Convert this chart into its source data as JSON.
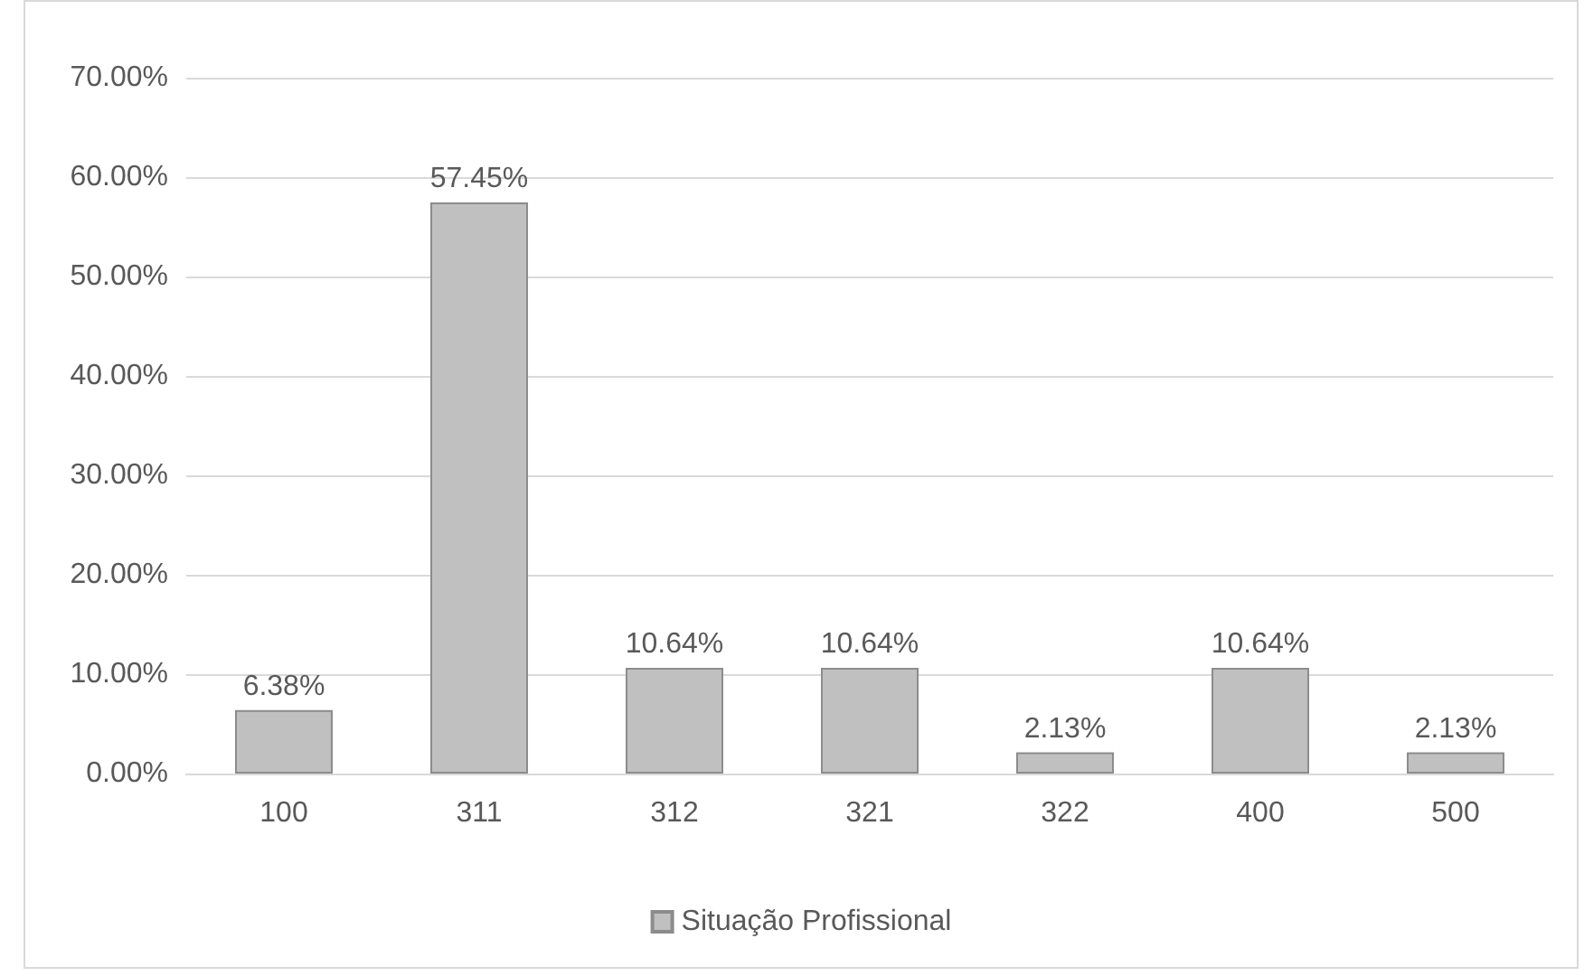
{
  "chart_data": {
    "type": "bar",
    "categories": [
      "100",
      "311",
      "312",
      "321",
      "322",
      "400",
      "500"
    ],
    "series": [
      {
        "name": "Situação Profissional",
        "color": "#c0c0c0",
        "values": [
          6.38,
          57.45,
          10.64,
          10.64,
          2.13,
          10.64,
          2.13
        ],
        "value_labels": [
          "6.38%",
          "57.45%",
          "10.64%",
          "10.64%",
          "2.13%",
          "10.64%",
          "2.13%"
        ]
      }
    ],
    "ylim": [
      0,
      70
    ],
    "yticks": [
      {
        "value": 0,
        "label": "0.00%"
      },
      {
        "value": 10,
        "label": "10.00%"
      },
      {
        "value": 20,
        "label": "20.00%"
      },
      {
        "value": 30,
        "label": "30.00%"
      },
      {
        "value": 40,
        "label": "40.00%"
      },
      {
        "value": 50,
        "label": "50.00%"
      },
      {
        "value": 60,
        "label": "60.00%"
      },
      {
        "value": 70,
        "label": "70.00%"
      }
    ],
    "grid": "y",
    "legend": "bottom"
  }
}
